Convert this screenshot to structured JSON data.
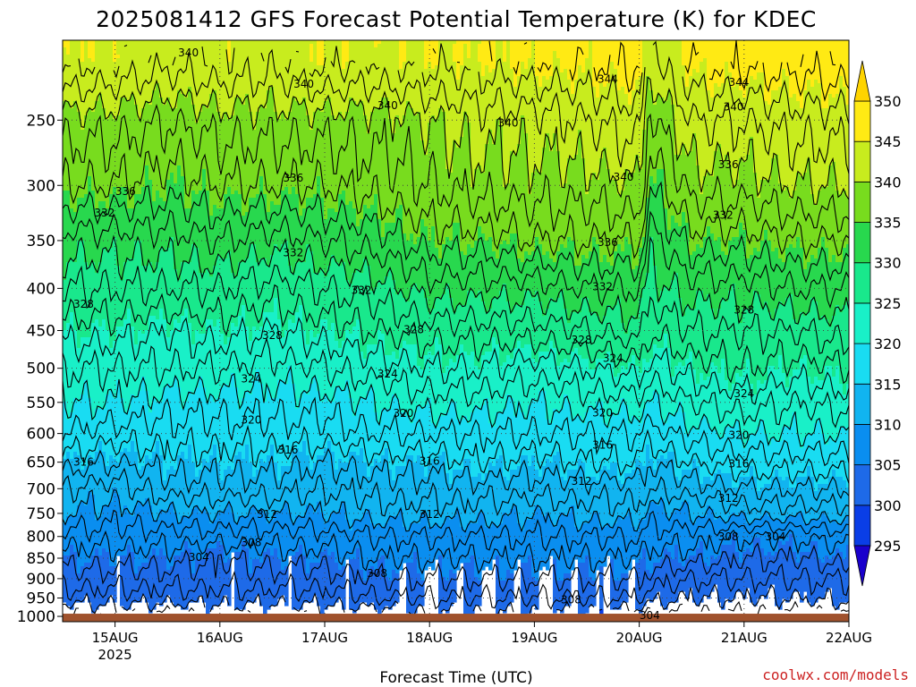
{
  "chart_data": {
    "type": "heatmap",
    "title": "2025081412 GFS Forecast Potential Temperature (K) for KDEC",
    "xlabel": "Forecast Time (UTC)",
    "ylabel": "",
    "x_ticks": [
      {
        "label": "15AUG",
        "sublabel": "2025",
        "day": 15
      },
      {
        "label": "16AUG",
        "sublabel": "",
        "day": 16
      },
      {
        "label": "17AUG",
        "sublabel": "",
        "day": 17
      },
      {
        "label": "18AUG",
        "sublabel": "",
        "day": 18
      },
      {
        "label": "19AUG",
        "sublabel": "",
        "day": 19
      },
      {
        "label": "20AUG",
        "sublabel": "",
        "day": 20
      },
      {
        "label": "21AUG",
        "sublabel": "",
        "day": 21
      },
      {
        "label": "22AUG",
        "sublabel": "",
        "day": 22
      }
    ],
    "x_range_days": [
      14.5,
      22.0
    ],
    "y_ticks": [
      250,
      300,
      350,
      400,
      450,
      500,
      550,
      600,
      650,
      700,
      750,
      800,
      850,
      900,
      950,
      1000
    ],
    "y_range_hpa": [
      200,
      1015
    ],
    "y_scale": "log",
    "grid": true,
    "colorbar": {
      "levels": [
        295,
        300,
        305,
        310,
        315,
        320,
        325,
        330,
        335,
        340,
        345,
        350
      ],
      "labels": [
        "295",
        "300",
        "305",
        "310",
        "315",
        "320",
        "325",
        "330",
        "335",
        "340",
        "345",
        "350"
      ],
      "colors": [
        "#1a00cc",
        "#0a3ee6",
        "#1e6ae8",
        "#0a8ef0",
        "#11b4f0",
        "#19dcf2",
        "#19f0c8",
        "#19e88c",
        "#28d84e",
        "#78dc1e",
        "#c8ec1e",
        "#ffea14",
        "#ffd400"
      ],
      "arrows": "both"
    },
    "ground_color": "#a0522d",
    "profile_pressures": [
      210,
      250,
      300,
      350,
      400,
      450,
      500,
      550,
      600,
      650,
      700,
      750,
      800,
      850,
      900,
      950,
      990
    ],
    "profile_times": [
      14.5,
      15.0,
      15.5,
      16.0,
      16.5,
      17.0,
      17.5,
      18.0,
      18.5,
      19.0,
      19.5,
      20.0,
      20.1,
      20.5,
      21.0,
      21.5,
      22.0
    ],
    "profiles": [
      [
        345,
        339,
        336,
        331,
        328,
        325,
        322,
        320,
        318,
        315,
        312,
        310,
        307,
        305,
        303,
        301,
        298
      ],
      [
        344,
        339,
        336,
        331,
        328,
        325,
        322,
        320,
        317,
        314,
        311,
        309,
        307,
        305,
        303,
        301,
        299
      ],
      [
        343,
        338,
        335,
        331,
        328,
        324,
        322,
        319,
        317,
        315,
        313,
        310,
        307,
        305,
        303,
        301,
        298
      ],
      [
        344,
        339,
        336,
        332,
        328,
        325,
        322,
        319,
        317,
        315,
        313,
        310,
        307,
        304,
        303,
        301,
        299
      ],
      [
        343,
        339,
        336,
        331,
        327,
        324,
        321,
        319,
        317,
        315,
        313,
        310,
        307,
        305,
        303,
        301,
        299
      ],
      [
        345,
        339,
        336,
        332,
        328,
        325,
        322,
        319,
        317,
        314,
        312,
        310,
        307,
        305,
        303,
        301,
        299
      ],
      [
        344,
        339,
        337,
        333,
        329,
        326,
        323,
        320,
        318,
        315,
        313,
        311,
        308,
        306,
        304,
        302,
        299
      ],
      [
        345,
        340,
        338,
        335,
        331,
        327,
        324,
        321,
        318,
        315,
        313,
        311,
        308,
        306,
        304,
        302,
        300
      ],
      [
        345,
        341,
        339,
        335,
        331,
        327,
        324,
        321,
        318,
        316,
        313,
        311,
        308,
        306,
        304,
        302,
        300
      ],
      [
        346,
        341,
        339,
        336,
        331,
        327,
        323,
        320,
        318,
        315,
        313,
        310,
        308,
        306,
        304,
        302,
        300
      ],
      [
        346,
        342,
        339,
        336,
        332,
        328,
        324,
        321,
        318,
        316,
        313,
        311,
        308,
        306,
        304,
        302,
        300
      ],
      [
        347,
        343,
        340,
        336,
        332,
        329,
        325,
        321,
        318,
        316,
        313,
        311,
        308,
        306,
        304,
        302,
        299
      ],
      [
        341,
        337,
        334,
        331,
        329,
        326,
        323,
        320,
        317,
        314,
        312,
        309,
        307,
        305,
        303,
        301,
        298
      ],
      [
        346,
        342,
        339,
        335,
        331,
        328,
        325,
        322,
        319,
        316,
        313,
        310,
        307,
        305,
        302,
        300,
        298
      ],
      [
        347,
        342,
        339,
        335,
        331,
        328,
        326,
        323,
        320,
        317,
        314,
        311,
        306,
        304,
        302,
        300,
        298
      ],
      [
        347,
        343,
        340,
        336,
        332,
        328,
        325,
        322,
        320,
        317,
        314,
        311,
        306,
        304,
        302,
        300,
        298
      ],
      [
        348,
        343,
        340,
        336,
        332,
        329,
        326,
        323,
        320,
        317,
        314,
        311,
        307,
        305,
        302,
        301,
        298
      ]
    ],
    "contour_labels": [
      {
        "text": "340",
        "day": 15.7,
        "hpa": 207
      },
      {
        "text": "340",
        "day": 16.8,
        "hpa": 226
      },
      {
        "text": "340",
        "day": 17.6,
        "hpa": 240
      },
      {
        "text": "340",
        "day": 18.75,
        "hpa": 252
      },
      {
        "text": "340",
        "day": 19.85,
        "hpa": 293
      },
      {
        "text": "340",
        "day": 20.9,
        "hpa": 241
      },
      {
        "text": "344",
        "day": 19.7,
        "hpa": 223
      },
      {
        "text": "344",
        "day": 20.95,
        "hpa": 225
      },
      {
        "text": "336",
        "day": 15.1,
        "hpa": 305
      },
      {
        "text": "336",
        "day": 16.7,
        "hpa": 294
      },
      {
        "text": "336",
        "day": 19.7,
        "hpa": 352
      },
      {
        "text": "336",
        "day": 20.85,
        "hpa": 283
      },
      {
        "text": "332",
        "day": 14.9,
        "hpa": 324
      },
      {
        "text": "332",
        "day": 16.7,
        "hpa": 362
      },
      {
        "text": "332",
        "day": 17.35,
        "hpa": 402
      },
      {
        "text": "332",
        "day": 19.65,
        "hpa": 398
      },
      {
        "text": "332",
        "day": 20.8,
        "hpa": 326
      },
      {
        "text": "328",
        "day": 14.7,
        "hpa": 418
      },
      {
        "text": "328",
        "day": 16.5,
        "hpa": 456
      },
      {
        "text": "328",
        "day": 17.85,
        "hpa": 449
      },
      {
        "text": "328",
        "day": 19.45,
        "hpa": 462
      },
      {
        "text": "328",
        "day": 21.0,
        "hpa": 425
      },
      {
        "text": "324",
        "day": 16.3,
        "hpa": 515
      },
      {
        "text": "324",
        "day": 17.6,
        "hpa": 508
      },
      {
        "text": "324",
        "day": 19.75,
        "hpa": 486
      },
      {
        "text": "324",
        "day": 21.0,
        "hpa": 537
      },
      {
        "text": "320",
        "day": 16.3,
        "hpa": 578
      },
      {
        "text": "320",
        "day": 17.75,
        "hpa": 567
      },
      {
        "text": "320",
        "day": 19.65,
        "hpa": 566
      },
      {
        "text": "320",
        "day": 20.95,
        "hpa": 603
      },
      {
        "text": "316",
        "day": 14.7,
        "hpa": 650
      },
      {
        "text": "316",
        "day": 16.65,
        "hpa": 628
      },
      {
        "text": "316",
        "day": 18.0,
        "hpa": 648
      },
      {
        "text": "316",
        "day": 19.65,
        "hpa": 620
      },
      {
        "text": "316",
        "day": 20.95,
        "hpa": 653
      },
      {
        "text": "312",
        "day": 16.45,
        "hpa": 752
      },
      {
        "text": "312",
        "day": 18.0,
        "hpa": 752
      },
      {
        "text": "312",
        "day": 19.45,
        "hpa": 686
      },
      {
        "text": "312",
        "day": 20.85,
        "hpa": 719
      },
      {
        "text": "308",
        "day": 16.3,
        "hpa": 814
      },
      {
        "text": "308",
        "day": 17.5,
        "hpa": 887
      },
      {
        "text": "308",
        "day": 19.35,
        "hpa": 955
      },
      {
        "text": "308",
        "day": 20.85,
        "hpa": 801
      },
      {
        "text": "304",
        "day": 15.8,
        "hpa": 848
      },
      {
        "text": "304",
        "day": 20.1,
        "hpa": 998
      },
      {
        "text": "304",
        "day": 21.3,
        "hpa": 801
      }
    ]
  },
  "credit": "coolwx.com/models"
}
